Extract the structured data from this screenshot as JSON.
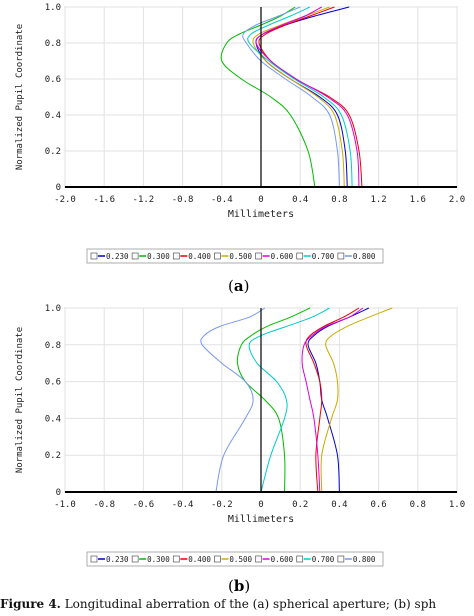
{
  "panels": [
    {
      "label": "(a)",
      "label_letter": "a"
    },
    {
      "label": "(b)",
      "label_letter": "b"
    }
  ],
  "caption": {
    "prefix": "Figure 4.",
    "text": "Longitudinal aberration of the (a) spherical aperture; (b) sph"
  },
  "chart_data": [
    {
      "type": "line",
      "ylabel": "Normalized Pupil Coordinate",
      "xlabel": "Millimeters",
      "xlim": [
        -2.0,
        2.0
      ],
      "ylim": [
        0,
        1.0
      ],
      "xticks": [
        "-2.0",
        "-1.6",
        "-1.2",
        "-0.8",
        "-0.4",
        "0",
        "0.4",
        "0.8",
        "1.2",
        "1.6",
        "2.0"
      ],
      "yticks": [
        "0",
        "0.2",
        "0.4",
        "0.6",
        "0.8",
        "1.0"
      ],
      "legend_position": "bottom",
      "grid": true,
      "series": [
        {
          "name": "0.230",
          "color": "#0000cc",
          "x": [
            0.88,
            0.86,
            0.78,
            0.6,
            0.3,
            0.05,
            -0.05,
            0.02,
            0.25,
            0.55,
            0.9
          ],
          "y": [
            0,
            0.2,
            0.4,
            0.5,
            0.6,
            0.7,
            0.8,
            0.85,
            0.9,
            0.95,
            1.0
          ]
        },
        {
          "name": "0.300",
          "color": "#00bb00",
          "x": [
            0.55,
            0.48,
            0.3,
            0.1,
            -0.2,
            -0.4,
            -0.35,
            -0.22,
            0.0,
            0.2,
            0.35
          ],
          "y": [
            0,
            0.2,
            0.4,
            0.5,
            0.6,
            0.7,
            0.8,
            0.85,
            0.9,
            0.95,
            1.0
          ]
        },
        {
          "name": "0.400",
          "color": "#ee0000",
          "x": [
            1.03,
            1.0,
            0.9,
            0.7,
            0.35,
            0.1,
            -0.02,
            0.05,
            0.25,
            0.5,
            0.75
          ],
          "y": [
            0,
            0.2,
            0.4,
            0.5,
            0.6,
            0.7,
            0.8,
            0.85,
            0.9,
            0.95,
            1.0
          ]
        },
        {
          "name": "0.500",
          "color": "#ccaa00",
          "x": [
            0.85,
            0.83,
            0.75,
            0.58,
            0.3,
            0.05,
            -0.08,
            -0.02,
            0.2,
            0.45,
            0.7
          ],
          "y": [
            0,
            0.2,
            0.4,
            0.5,
            0.6,
            0.7,
            0.8,
            0.85,
            0.9,
            0.95,
            1.0
          ]
        },
        {
          "name": "0.600",
          "color": "#dd00dd",
          "x": [
            1.0,
            0.98,
            0.88,
            0.68,
            0.36,
            0.1,
            -0.05,
            0.02,
            0.22,
            0.45,
            0.62
          ],
          "y": [
            0,
            0.2,
            0.4,
            0.5,
            0.6,
            0.7,
            0.8,
            0.85,
            0.9,
            0.95,
            1.0
          ]
        },
        {
          "name": "0.700",
          "color": "#00cccc",
          "x": [
            0.93,
            0.91,
            0.82,
            0.64,
            0.34,
            0.08,
            -0.12,
            -0.1,
            0.08,
            0.3,
            0.5
          ],
          "y": [
            0,
            0.2,
            0.4,
            0.5,
            0.6,
            0.7,
            0.8,
            0.85,
            0.9,
            0.95,
            1.0
          ]
        },
        {
          "name": "0.800",
          "color": "#7799ee",
          "x": [
            0.8,
            0.78,
            0.7,
            0.52,
            0.25,
            0.0,
            -0.15,
            -0.18,
            -0.05,
            0.18,
            0.4
          ],
          "y": [
            0,
            0.2,
            0.4,
            0.5,
            0.6,
            0.7,
            0.8,
            0.85,
            0.9,
            0.95,
            1.0
          ]
        }
      ]
    },
    {
      "type": "line",
      "ylabel": "Normalized Pupil Coordinate",
      "xlabel": "Millimeters",
      "xlim": [
        -1.0,
        1.0
      ],
      "ylim": [
        0,
        1.0
      ],
      "xticks": [
        "-1.0",
        "-0.8",
        "-0.6",
        "-0.4",
        "-0.2",
        "0",
        "0.2",
        "0.4",
        "0.6",
        "0.8",
        "1.0"
      ],
      "yticks": [
        "0",
        "0.2",
        "0.4",
        "0.6",
        "0.8",
        "1.0"
      ],
      "legend_position": "bottom",
      "grid": true,
      "series": [
        {
          "name": "0.230",
          "color": "#0000cc",
          "x": [
            0.4,
            0.39,
            0.34,
            0.31,
            0.3,
            0.28,
            0.24,
            0.27,
            0.34,
            0.45,
            0.55
          ],
          "y": [
            0,
            0.2,
            0.4,
            0.5,
            0.6,
            0.7,
            0.8,
            0.85,
            0.9,
            0.95,
            1.0
          ]
        },
        {
          "name": "0.300",
          "color": "#00bb00",
          "x": [
            0.12,
            0.12,
            0.09,
            0.02,
            -0.08,
            -0.12,
            -0.1,
            -0.05,
            0.03,
            0.15,
            0.25
          ],
          "y": [
            0,
            0.2,
            0.4,
            0.5,
            0.6,
            0.7,
            0.8,
            0.85,
            0.9,
            0.95,
            1.0
          ]
        },
        {
          "name": "0.400",
          "color": "#ee0000",
          "x": [
            0.29,
            0.28,
            0.3,
            0.31,
            0.3,
            0.27,
            0.23,
            0.25,
            0.32,
            0.42,
            0.5
          ],
          "y": [
            0,
            0.2,
            0.4,
            0.5,
            0.6,
            0.7,
            0.8,
            0.85,
            0.9,
            0.95,
            1.0
          ]
        },
        {
          "name": "0.500",
          "color": "#ccaa00",
          "x": [
            0.31,
            0.31,
            0.36,
            0.39,
            0.39,
            0.37,
            0.33,
            0.36,
            0.44,
            0.55,
            0.67
          ],
          "y": [
            0,
            0.2,
            0.4,
            0.5,
            0.6,
            0.7,
            0.8,
            0.85,
            0.9,
            0.95,
            1.0
          ]
        },
        {
          "name": "0.600",
          "color": "#dd00dd",
          "x": [
            0.3,
            0.29,
            0.27,
            0.25,
            0.23,
            0.21,
            0.22,
            0.26,
            0.33,
            0.45,
            0.52
          ],
          "y": [
            0,
            0.2,
            0.4,
            0.5,
            0.6,
            0.7,
            0.8,
            0.85,
            0.9,
            0.95,
            1.0
          ]
        },
        {
          "name": "0.700",
          "color": "#00cccc",
          "x": [
            0.0,
            0.05,
            0.12,
            0.13,
            0.08,
            -0.02,
            -0.06,
            0.0,
            0.13,
            0.26,
            0.35
          ],
          "y": [
            0,
            0.2,
            0.4,
            0.5,
            0.6,
            0.7,
            0.8,
            0.85,
            0.9,
            0.95,
            1.0
          ]
        },
        {
          "name": "0.800",
          "color": "#7799ee",
          "x": [
            -0.23,
            -0.19,
            -0.08,
            -0.04,
            -0.08,
            -0.2,
            -0.3,
            -0.29,
            -0.21,
            -0.06,
            0.02
          ],
          "y": [
            0,
            0.2,
            0.4,
            0.5,
            0.6,
            0.7,
            0.8,
            0.85,
            0.9,
            0.95,
            1.0
          ]
        }
      ]
    }
  ]
}
